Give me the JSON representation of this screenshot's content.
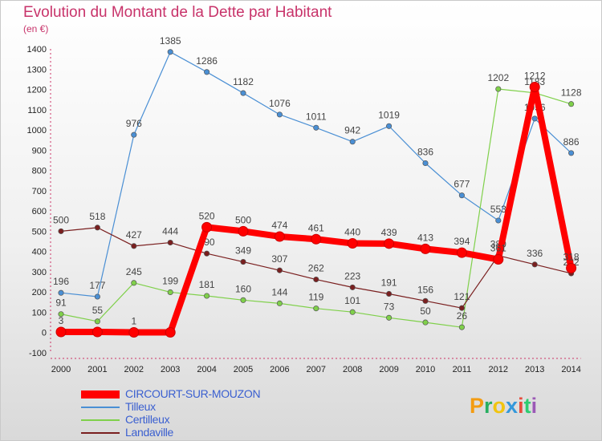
{
  "title": "Evolution du Montant de la Dette par Habitant",
  "subtitle": "(en €)",
  "logo": {
    "text": "Proxiti",
    "letter_colors": [
      "#f39c12",
      "#27ae60",
      "#f1c40f",
      "#3498db",
      "#e74c3c",
      "#2ecc71",
      "#9b59b6"
    ]
  },
  "chart_data": {
    "type": "line",
    "title": "Evolution du Montant de la Dette par Habitant",
    "subtitle": "(en €)",
    "x": [
      "2000",
      "2001",
      "2002",
      "2003",
      "2004",
      "2005",
      "2006",
      "2007",
      "2008",
      "2009",
      "2010",
      "2011",
      "2012",
      "2013",
      "2014"
    ],
    "ylim": [
      -100,
      1400
    ],
    "yticks": [
      -100,
      0,
      100,
      200,
      300,
      400,
      500,
      600,
      700,
      800,
      900,
      1000,
      1100,
      1200,
      1300,
      1400
    ],
    "grid": false,
    "legend_position": "bottom-left",
    "series": [
      {
        "name": "CIRCOURT-SUR-MOUZON",
        "color": "#ff0000",
        "values": [
          3,
          3,
          1,
          1,
          520,
          500,
          474,
          461,
          440,
          439,
          413,
          394,
          361,
          1212,
          318
        ],
        "labels": [
          "3",
          "",
          "1",
          "",
          "520",
          "500",
          "474",
          "461",
          "440",
          "439",
          "413",
          "394",
          "361",
          "1212",
          "318"
        ]
      },
      {
        "name": "Tilleux",
        "color": "#4a8fd4",
        "values": [
          196,
          177,
          976,
          1385,
          1286,
          1182,
          1076,
          1011,
          942,
          1019,
          836,
          677,
          553,
          1056,
          886
        ]
      },
      {
        "name": "Certilleux",
        "color": "#7fd04a",
        "values": [
          91,
          55,
          245,
          199,
          181,
          160,
          144,
          119,
          101,
          73,
          50,
          26,
          1202,
          1183,
          1128
        ]
      },
      {
        "name": "Landaville",
        "color": "#7a1f1f",
        "values": [
          500,
          518,
          427,
          444,
          390,
          349,
          307,
          262,
          223,
          191,
          156,
          121,
          380,
          336,
          292
        ]
      }
    ]
  }
}
